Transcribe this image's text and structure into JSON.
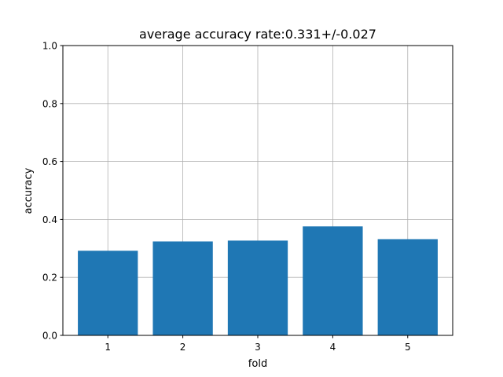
{
  "chart_data": {
    "type": "bar",
    "title": "average accuracy rate:0.331+/-0.027",
    "xlabel": "fold",
    "ylabel": "accuracy",
    "categories": [
      "1",
      "2",
      "3",
      "4",
      "5"
    ],
    "values": [
      0.292,
      0.324,
      0.327,
      0.376,
      0.332
    ],
    "ylim": [
      0,
      1.0
    ],
    "xlim": [
      0.4,
      5.6
    ],
    "yticks": [
      "0.0",
      "0.2",
      "0.4",
      "0.6",
      "0.8",
      "1.0"
    ],
    "grid": true,
    "bar_color": "#1f77b4",
    "grid_color": "#b0b0b0"
  }
}
